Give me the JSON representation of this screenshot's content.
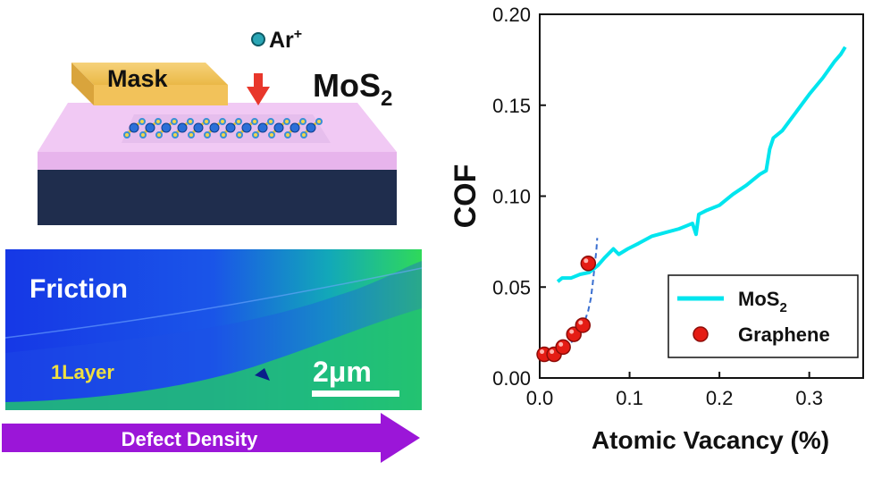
{
  "schematic": {
    "mask_label": "Mask",
    "ion_label": "Ar",
    "ion_charge": "+",
    "material_label": "MoS",
    "material_subscript": "2"
  },
  "afm_image": {
    "title": "Friction",
    "layer_label": "1Layer",
    "scale_bar_label": "2μm"
  },
  "arrow": {
    "label": "Defect Density",
    "color": "#9b16d8"
  },
  "colors": {
    "mos2_line": "#00e5ee",
    "graphene_marker": "#e51c14",
    "fit_line": "#3a6fd0"
  },
  "chart_data": {
    "type": "scatter",
    "xlabel": "Atomic Vacancy (%)",
    "ylabel": "COF",
    "xlim": [
      0.0,
      0.36
    ],
    "ylim": [
      0.0,
      0.2
    ],
    "xticks": [
      "0.0",
      "0.1",
      "0.2",
      "0.3"
    ],
    "yticks": [
      "0.00",
      "0.05",
      "0.10",
      "0.15",
      "0.20"
    ],
    "series": [
      {
        "name": "MoS",
        "name_subscript": "2",
        "style": "line",
        "points": [
          [
            0.02,
            0.053
          ],
          [
            0.025,
            0.055
          ],
          [
            0.035,
            0.055
          ],
          [
            0.045,
            0.057
          ],
          [
            0.055,
            0.058
          ],
          [
            0.065,
            0.062
          ],
          [
            0.072,
            0.066
          ],
          [
            0.078,
            0.069
          ],
          [
            0.082,
            0.071
          ],
          [
            0.088,
            0.068
          ],
          [
            0.098,
            0.071
          ],
          [
            0.11,
            0.074
          ],
          [
            0.125,
            0.078
          ],
          [
            0.14,
            0.08
          ],
          [
            0.155,
            0.082
          ],
          [
            0.165,
            0.084
          ],
          [
            0.17,
            0.085
          ],
          [
            0.174,
            0.079
          ],
          [
            0.177,
            0.09
          ],
          [
            0.185,
            0.092
          ],
          [
            0.2,
            0.095
          ],
          [
            0.215,
            0.101
          ],
          [
            0.23,
            0.106
          ],
          [
            0.245,
            0.112
          ],
          [
            0.252,
            0.114
          ],
          [
            0.256,
            0.126
          ],
          [
            0.26,
            0.132
          ],
          [
            0.27,
            0.136
          ],
          [
            0.285,
            0.146
          ],
          [
            0.3,
            0.156
          ],
          [
            0.315,
            0.165
          ],
          [
            0.328,
            0.174
          ],
          [
            0.335,
            0.178
          ],
          [
            0.34,
            0.182
          ]
        ]
      },
      {
        "name": "Graphene",
        "style": "markers",
        "points": [
          [
            0.005,
            0.013
          ],
          [
            0.016,
            0.013
          ],
          [
            0.026,
            0.017
          ],
          [
            0.038,
            0.024
          ],
          [
            0.048,
            0.029
          ],
          [
            0.054,
            0.063
          ]
        ]
      }
    ],
    "fit_line": [
      [
        0.0,
        0.011
      ],
      [
        0.01,
        0.012
      ],
      [
        0.02,
        0.014
      ],
      [
        0.03,
        0.017
      ],
      [
        0.038,
        0.021
      ],
      [
        0.045,
        0.026
      ],
      [
        0.05,
        0.031
      ],
      [
        0.054,
        0.037
      ],
      [
        0.057,
        0.044
      ],
      [
        0.059,
        0.052
      ],
      [
        0.061,
        0.061
      ],
      [
        0.063,
        0.07
      ],
      [
        0.064,
        0.077
      ]
    ],
    "legend_position": "bottom-right"
  }
}
